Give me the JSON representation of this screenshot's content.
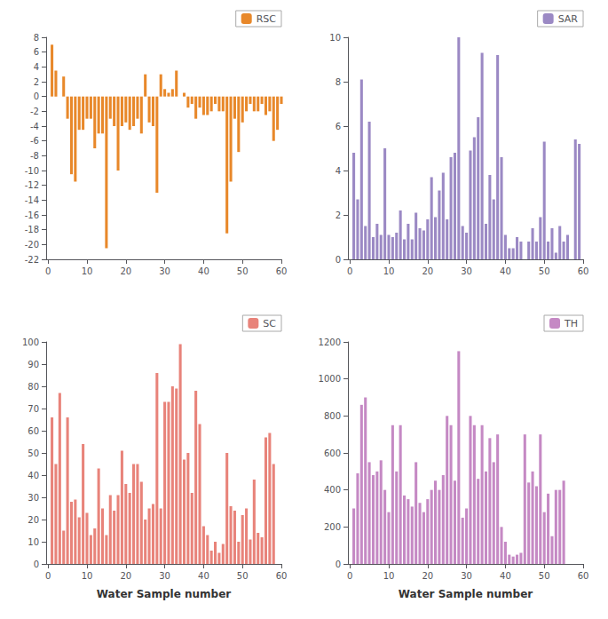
{
  "chart_data": [
    {
      "type": "bar",
      "x": [
        1,
        2,
        3,
        4,
        5,
        6,
        7,
        8,
        9,
        10,
        11,
        12,
        13,
        14,
        15,
        16,
        17,
        18,
        19,
        20,
        21,
        22,
        23,
        24,
        25,
        26,
        27,
        28,
        29,
        30,
        31,
        32,
        33,
        34,
        35,
        36,
        37,
        38,
        39,
        40,
        41,
        42,
        43,
        44,
        45,
        46,
        47,
        48,
        49,
        50,
        51,
        52,
        53,
        54,
        55,
        56,
        57,
        58,
        59,
        60
      ],
      "series": [
        {
          "name": "RSC",
          "color": "#E8882A",
          "values": [
            7,
            3.5,
            0,
            2.7,
            -3,
            -10.5,
            -11.5,
            -4.5,
            -4.5,
            -3,
            -3,
            -7,
            -5,
            -5,
            -20.5,
            -3,
            -4,
            -10,
            -4,
            -3.5,
            -4.5,
            -4,
            -3,
            -5,
            3,
            -3.5,
            -4,
            -13,
            3,
            1,
            0.5,
            1,
            3.5,
            0,
            0.5,
            -1.5,
            -1,
            -3,
            -1.5,
            -2.5,
            -2.5,
            -2,
            -1,
            -2,
            -2,
            -18.5,
            -11.5,
            -3,
            -7.5,
            -3.5,
            -2,
            -1,
            -2,
            -2,
            -1,
            -2.5,
            -2,
            -6,
            -4.5,
            -1
          ]
        }
      ],
      "xlim": [
        -0.5,
        60
      ],
      "xticks": [
        0,
        10,
        20,
        30,
        40,
        50,
        60
      ],
      "ylim": [
        -22,
        8
      ],
      "yticks": [
        -22,
        -20,
        -18,
        -16,
        -14,
        -12,
        -10,
        -8,
        -6,
        -4,
        -2,
        0,
        2,
        4,
        6,
        8
      ],
      "legend": "upper right",
      "grid": false
    },
    {
      "type": "bar",
      "x": [
        1,
        2,
        3,
        4,
        5,
        6,
        7,
        8,
        9,
        10,
        11,
        12,
        13,
        14,
        15,
        16,
        17,
        18,
        19,
        20,
        21,
        22,
        23,
        24,
        25,
        26,
        27,
        28,
        29,
        30,
        31,
        32,
        33,
        34,
        35,
        36,
        37,
        38,
        39,
        40,
        41,
        42,
        43,
        44,
        45,
        46,
        47,
        48,
        49,
        50,
        51,
        52,
        53,
        54,
        55,
        56,
        57,
        58,
        59,
        60
      ],
      "series": [
        {
          "name": "SAR",
          "color": "#9B89C4",
          "values": [
            4.8,
            2.7,
            8.1,
            1.5,
            6.2,
            1.0,
            1.6,
            1.1,
            5.0,
            1.1,
            1.0,
            1.2,
            2.2,
            0.9,
            1.6,
            0.9,
            2.1,
            1.4,
            1.3,
            1.8,
            3.7,
            1.9,
            3.1,
            3.9,
            1.8,
            4.6,
            4.8,
            10.0,
            1.5,
            1.2,
            4.9,
            5.5,
            6.4,
            9.3,
            1.6,
            3.8,
            2.7,
            9.2,
            4.6,
            1.1,
            0.5,
            0.5,
            1.0,
            0.8,
            0.0,
            0.8,
            1.4,
            0.8,
            1.9,
            5.3,
            0.8,
            1.4,
            0.3,
            1.5,
            0.8,
            1.1,
            0.0,
            5.4,
            5.2,
            0.0
          ]
        }
      ],
      "xlim": [
        -0.5,
        60
      ],
      "xticks": [
        0,
        10,
        20,
        30,
        40,
        50,
        60
      ],
      "ylim": [
        0,
        10
      ],
      "yticks": [
        0,
        2,
        4,
        6,
        8,
        10
      ],
      "legend": "upper right",
      "grid": false
    },
    {
      "type": "bar",
      "x": [
        1,
        2,
        3,
        4,
        5,
        6,
        7,
        8,
        9,
        10,
        11,
        12,
        13,
        14,
        15,
        16,
        17,
        18,
        19,
        20,
        21,
        22,
        23,
        24,
        25,
        26,
        27,
        28,
        29,
        30,
        31,
        32,
        33,
        34,
        35,
        36,
        37,
        38,
        39,
        40,
        41,
        42,
        43,
        44,
        45,
        46,
        47,
        48,
        49,
        50,
        51,
        52,
        53,
        54,
        55,
        56,
        57,
        58,
        59,
        60
      ],
      "series": [
        {
          "name": "SC",
          "color": "#E8837A",
          "values": [
            66,
            45,
            77,
            15,
            66,
            28,
            29,
            21,
            54,
            23,
            13,
            16,
            43,
            25,
            13,
            31,
            24,
            31,
            51,
            36,
            32,
            45,
            45,
            37,
            20,
            25,
            27,
            86,
            25,
            73,
            73,
            80,
            79,
            99,
            47,
            50,
            32,
            78,
            63,
            17,
            13,
            6,
            10,
            5,
            9,
            50,
            26,
            24,
            10,
            22,
            25,
            11,
            38,
            14,
            12,
            57,
            59,
            45,
            0,
            0
          ]
        }
      ],
      "xlim": [
        -0.5,
        60
      ],
      "xticks": [
        0,
        10,
        20,
        30,
        40,
        50,
        60
      ],
      "ylim": [
        0,
        100
      ],
      "yticks": [
        0,
        10,
        20,
        30,
        40,
        50,
        60,
        70,
        80,
        90,
        100
      ],
      "xlabel": "Water Sample number",
      "legend": "upper right",
      "grid": false
    },
    {
      "type": "bar",
      "x": [
        1,
        2,
        3,
        4,
        5,
        6,
        7,
        8,
        9,
        10,
        11,
        12,
        13,
        14,
        15,
        16,
        17,
        18,
        19,
        20,
        21,
        22,
        23,
        24,
        25,
        26,
        27,
        28,
        29,
        30,
        31,
        32,
        33,
        34,
        35,
        36,
        37,
        38,
        39,
        40,
        41,
        42,
        43,
        44,
        45,
        46,
        47,
        48,
        49,
        50,
        51,
        52,
        53,
        54,
        55,
        56,
        57,
        58,
        59,
        60
      ],
      "series": [
        {
          "name": "TH",
          "color": "#C589C4",
          "values": [
            300,
            490,
            860,
            900,
            550,
            480,
            500,
            560,
            400,
            280,
            750,
            500,
            750,
            370,
            350,
            310,
            550,
            330,
            280,
            350,
            400,
            450,
            400,
            480,
            800,
            750,
            450,
            1150,
            250,
            300,
            800,
            750,
            460,
            750,
            500,
            680,
            550,
            700,
            200,
            120,
            50,
            40,
            50,
            60,
            700,
            440,
            500,
            420,
            700,
            280,
            380,
            150,
            400,
            400,
            450,
            0,
            0,
            0,
            0,
            0
          ]
        }
      ],
      "xlim": [
        -0.5,
        60
      ],
      "xticks": [
        0,
        10,
        20,
        30,
        40,
        50,
        60
      ],
      "ylim": [
        0,
        1200
      ],
      "yticks": [
        0,
        200,
        400,
        600,
        800,
        1000,
        1200
      ],
      "xlabel": "Water Sample number",
      "legend": "upper right",
      "grid": false
    }
  ]
}
